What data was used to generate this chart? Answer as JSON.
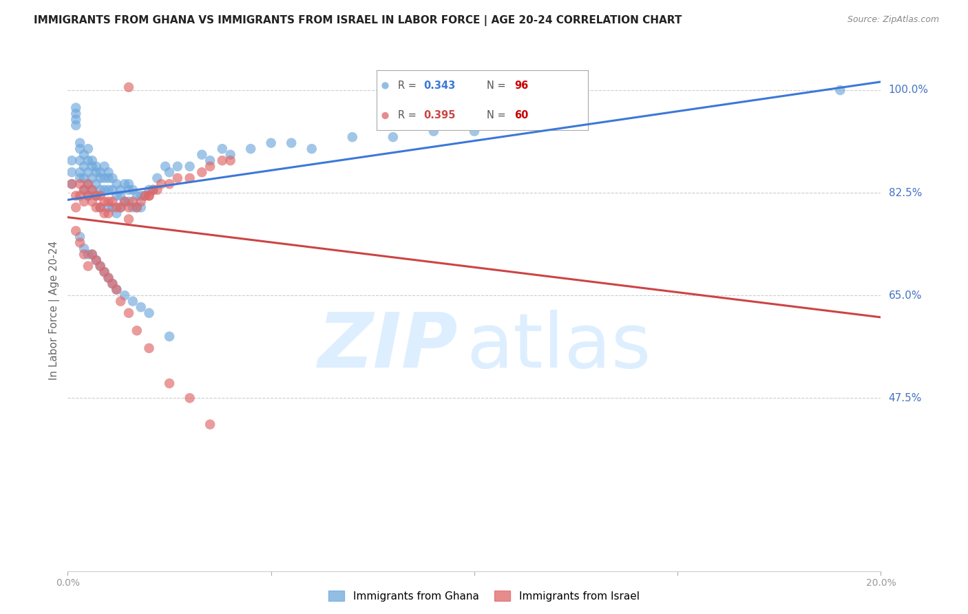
{
  "title": "IMMIGRANTS FROM GHANA VS IMMIGRANTS FROM ISRAEL IN LABOR FORCE | AGE 20-24 CORRELATION CHART",
  "source": "Source: ZipAtlas.com",
  "ylabel": "In Labor Force | Age 20-24",
  "yticks": [
    47.5,
    65.0,
    82.5,
    100.0
  ],
  "ytick_labels": [
    "47.5%",
    "65.0%",
    "82.5%",
    "100.0%"
  ],
  "xmin": 0.0,
  "xmax": 0.2,
  "ymin": 18.0,
  "ymax": 107.0,
  "ghana_R": 0.343,
  "ghana_N": 96,
  "israel_R": 0.395,
  "israel_N": 60,
  "ghana_color": "#6fa8dc",
  "israel_color": "#e06666",
  "ghana_line_color": "#3c78d8",
  "israel_line_color": "#cc4444",
  "watermark_zip": "ZIP",
  "watermark_atlas": "atlas",
  "watermark_color": "#ddeeff",
  "ghana_x": [
    0.001,
    0.001,
    0.001,
    0.002,
    0.002,
    0.002,
    0.002,
    0.003,
    0.003,
    0.003,
    0.003,
    0.003,
    0.004,
    0.004,
    0.004,
    0.004,
    0.005,
    0.005,
    0.005,
    0.005,
    0.005,
    0.006,
    0.006,
    0.006,
    0.006,
    0.007,
    0.007,
    0.007,
    0.007,
    0.008,
    0.008,
    0.008,
    0.008,
    0.009,
    0.009,
    0.009,
    0.01,
    0.01,
    0.01,
    0.01,
    0.011,
    0.011,
    0.011,
    0.012,
    0.012,
    0.012,
    0.013,
    0.013,
    0.013,
    0.014,
    0.014,
    0.015,
    0.015,
    0.015,
    0.016,
    0.016,
    0.017,
    0.017,
    0.018,
    0.018,
    0.019,
    0.02,
    0.021,
    0.022,
    0.024,
    0.025,
    0.027,
    0.03,
    0.033,
    0.035,
    0.038,
    0.04,
    0.045,
    0.05,
    0.055,
    0.06,
    0.07,
    0.08,
    0.09,
    0.1,
    0.003,
    0.004,
    0.005,
    0.006,
    0.007,
    0.008,
    0.009,
    0.01,
    0.011,
    0.012,
    0.014,
    0.016,
    0.018,
    0.02,
    0.025,
    0.19
  ],
  "ghana_y": [
    88.0,
    86.0,
    84.0,
    97.0,
    96.0,
    95.0,
    94.0,
    91.0,
    90.0,
    88.0,
    86.0,
    85.0,
    89.0,
    87.0,
    85.0,
    83.0,
    90.0,
    88.0,
    86.0,
    84.0,
    82.0,
    88.0,
    87.0,
    85.0,
    83.0,
    87.0,
    86.0,
    84.0,
    82.0,
    86.0,
    85.0,
    83.0,
    80.0,
    87.0,
    85.0,
    83.0,
    86.0,
    85.0,
    83.0,
    80.0,
    85.0,
    83.0,
    80.0,
    84.0,
    82.0,
    79.0,
    83.0,
    82.0,
    80.0,
    84.0,
    81.0,
    84.0,
    83.0,
    81.0,
    83.0,
    80.0,
    82.0,
    80.0,
    82.0,
    80.0,
    82.0,
    83.0,
    83.0,
    85.0,
    87.0,
    86.0,
    87.0,
    87.0,
    89.0,
    88.0,
    90.0,
    89.0,
    90.0,
    91.0,
    91.0,
    90.0,
    92.0,
    92.0,
    93.0,
    93.0,
    75.0,
    73.0,
    72.0,
    72.0,
    71.0,
    70.0,
    69.0,
    68.0,
    67.0,
    66.0,
    65.0,
    64.0,
    63.0,
    62.0,
    58.0,
    100.0
  ],
  "israel_x": [
    0.001,
    0.002,
    0.002,
    0.003,
    0.003,
    0.004,
    0.004,
    0.005,
    0.005,
    0.006,
    0.006,
    0.007,
    0.007,
    0.008,
    0.008,
    0.009,
    0.009,
    0.01,
    0.01,
    0.011,
    0.012,
    0.013,
    0.014,
    0.015,
    0.015,
    0.016,
    0.017,
    0.018,
    0.019,
    0.02,
    0.021,
    0.022,
    0.023,
    0.025,
    0.027,
    0.03,
    0.033,
    0.035,
    0.038,
    0.04,
    0.002,
    0.003,
    0.004,
    0.005,
    0.006,
    0.007,
    0.008,
    0.009,
    0.01,
    0.011,
    0.012,
    0.013,
    0.015,
    0.017,
    0.02,
    0.025,
    0.03,
    0.035,
    0.015,
    0.02
  ],
  "israel_y": [
    84.0,
    82.0,
    80.0,
    84.0,
    82.0,
    83.0,
    81.0,
    84.0,
    82.0,
    83.0,
    81.0,
    82.0,
    80.0,
    82.0,
    80.0,
    81.0,
    79.0,
    81.0,
    79.0,
    81.0,
    80.0,
    80.0,
    81.0,
    80.0,
    78.0,
    81.0,
    80.0,
    81.0,
    82.0,
    82.0,
    83.0,
    83.0,
    84.0,
    84.0,
    85.0,
    85.0,
    86.0,
    87.0,
    88.0,
    88.0,
    76.0,
    74.0,
    72.0,
    70.0,
    72.0,
    71.0,
    70.0,
    69.0,
    68.0,
    67.0,
    66.0,
    64.0,
    62.0,
    59.0,
    56.0,
    50.0,
    47.5,
    43.0,
    100.5,
    82.0
  ]
}
